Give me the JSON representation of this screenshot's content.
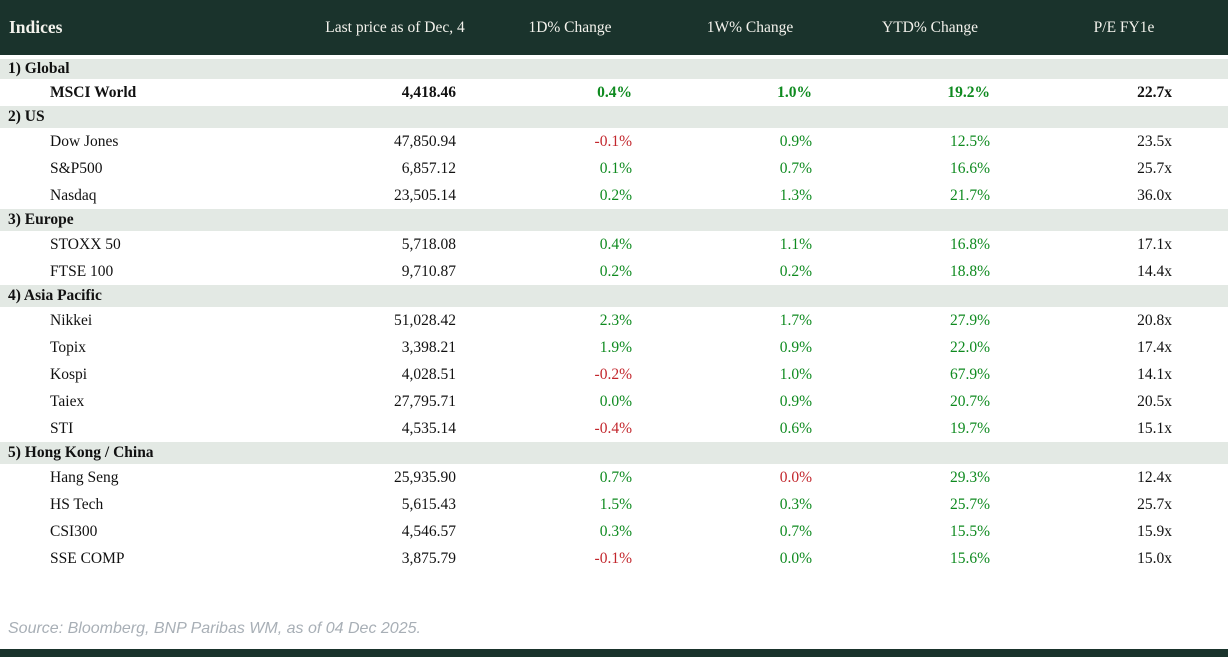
{
  "table": {
    "columns": [
      {
        "label": "Indices"
      },
      {
        "label": "Last price as of Dec, 4"
      },
      {
        "label": "1D% Change"
      },
      {
        "label": "1W% Change"
      },
      {
        "label": "YTD% Change"
      },
      {
        "label": "P/E FY1e"
      }
    ],
    "sections": [
      {
        "label": "1) Global",
        "rows": [
          {
            "name": "MSCI World",
            "emphasis": true,
            "last_price": "4,418.46",
            "chg_1d": {
              "text": "0.4%",
              "dir": "up"
            },
            "chg_1w": {
              "text": "1.0%",
              "dir": "up"
            },
            "chg_ytd": {
              "text": "19.2%",
              "dir": "up"
            },
            "pe_fy1e": "22.7x"
          }
        ]
      },
      {
        "label": "2) US",
        "rows": [
          {
            "name": "Dow Jones",
            "emphasis": false,
            "last_price": "47,850.94",
            "chg_1d": {
              "text": "-0.1%",
              "dir": "down"
            },
            "chg_1w": {
              "text": "0.9%",
              "dir": "up"
            },
            "chg_ytd": {
              "text": "12.5%",
              "dir": "up"
            },
            "pe_fy1e": "23.5x"
          },
          {
            "name": "S&P500",
            "emphasis": false,
            "last_price": "6,857.12",
            "chg_1d": {
              "text": "0.1%",
              "dir": "up"
            },
            "chg_1w": {
              "text": "0.7%",
              "dir": "up"
            },
            "chg_ytd": {
              "text": "16.6%",
              "dir": "up"
            },
            "pe_fy1e": "25.7x"
          },
          {
            "name": "Nasdaq",
            "emphasis": false,
            "last_price": "23,505.14",
            "chg_1d": {
              "text": "0.2%",
              "dir": "up"
            },
            "chg_1w": {
              "text": "1.3%",
              "dir": "up"
            },
            "chg_ytd": {
              "text": "21.7%",
              "dir": "up"
            },
            "pe_fy1e": "36.0x"
          }
        ]
      },
      {
        "label": "3) Europe",
        "rows": [
          {
            "name": "STOXX 50",
            "emphasis": false,
            "last_price": "5,718.08",
            "chg_1d": {
              "text": "0.4%",
              "dir": "up"
            },
            "chg_1w": {
              "text": "1.1%",
              "dir": "up"
            },
            "chg_ytd": {
              "text": "16.8%",
              "dir": "up"
            },
            "pe_fy1e": "17.1x"
          },
          {
            "name": "FTSE 100",
            "emphasis": false,
            "last_price": "9,710.87",
            "chg_1d": {
              "text": "0.2%",
              "dir": "up"
            },
            "chg_1w": {
              "text": "0.2%",
              "dir": "up"
            },
            "chg_ytd": {
              "text": "18.8%",
              "dir": "up"
            },
            "pe_fy1e": "14.4x"
          }
        ]
      },
      {
        "label": "4) Asia Pacific",
        "rows": [
          {
            "name": "Nikkei",
            "emphasis": false,
            "last_price": "51,028.42",
            "chg_1d": {
              "text": "2.3%",
              "dir": "up"
            },
            "chg_1w": {
              "text": "1.7%",
              "dir": "up"
            },
            "chg_ytd": {
              "text": "27.9%",
              "dir": "up"
            },
            "pe_fy1e": "20.8x"
          },
          {
            "name": "Topix",
            "emphasis": false,
            "last_price": "3,398.21",
            "chg_1d": {
              "text": "1.9%",
              "dir": "up"
            },
            "chg_1w": {
              "text": "0.9%",
              "dir": "up"
            },
            "chg_ytd": {
              "text": "22.0%",
              "dir": "up"
            },
            "pe_fy1e": "17.4x"
          },
          {
            "name": "Kospi",
            "emphasis": false,
            "last_price": "4,028.51",
            "chg_1d": {
              "text": "-0.2%",
              "dir": "down"
            },
            "chg_1w": {
              "text": "1.0%",
              "dir": "up"
            },
            "chg_ytd": {
              "text": "67.9%",
              "dir": "up"
            },
            "pe_fy1e": "14.1x"
          },
          {
            "name": "Taiex",
            "emphasis": false,
            "last_price": "27,795.71",
            "chg_1d": {
              "text": "0.0%",
              "dir": "up"
            },
            "chg_1w": {
              "text": "0.9%",
              "dir": "up"
            },
            "chg_ytd": {
              "text": "20.7%",
              "dir": "up"
            },
            "pe_fy1e": "20.5x"
          },
          {
            "name": "STI",
            "emphasis": false,
            "last_price": "4,535.14",
            "chg_1d": {
              "text": "-0.4%",
              "dir": "down"
            },
            "chg_1w": {
              "text": "0.6%",
              "dir": "up"
            },
            "chg_ytd": {
              "text": "19.7%",
              "dir": "up"
            },
            "pe_fy1e": "15.1x"
          }
        ]
      },
      {
        "label": "5) Hong Kong / China",
        "rows": [
          {
            "name": "Hang Seng",
            "emphasis": false,
            "last_price": "25,935.90",
            "chg_1d": {
              "text": "0.7%",
              "dir": "up"
            },
            "chg_1w": {
              "text": "0.0%",
              "dir": "down"
            },
            "chg_ytd": {
              "text": "29.3%",
              "dir": "up"
            },
            "pe_fy1e": "12.4x"
          },
          {
            "name": "HS Tech",
            "emphasis": false,
            "last_price": "5,615.43",
            "chg_1d": {
              "text": "1.5%",
              "dir": "up"
            },
            "chg_1w": {
              "text": "0.3%",
              "dir": "up"
            },
            "chg_ytd": {
              "text": "25.7%",
              "dir": "up"
            },
            "pe_fy1e": "25.7x"
          },
          {
            "name": "CSI300",
            "emphasis": false,
            "last_price": "4,546.57",
            "chg_1d": {
              "text": "0.3%",
              "dir": "up"
            },
            "chg_1w": {
              "text": "0.7%",
              "dir": "up"
            },
            "chg_ytd": {
              "text": "15.5%",
              "dir": "up"
            },
            "pe_fy1e": "15.9x"
          },
          {
            "name": "SSE COMP",
            "emphasis": false,
            "last_price": "3,875.79",
            "chg_1d": {
              "text": "-0.1%",
              "dir": "down"
            },
            "chg_1w": {
              "text": "0.0%",
              "dir": "up"
            },
            "chg_ytd": {
              "text": "15.6%",
              "dir": "up"
            },
            "pe_fy1e": "15.0x"
          }
        ]
      }
    ]
  },
  "footer": {
    "source": "Source: Bloomberg, BNP Paribas WM, as of 04 Dec 2025."
  },
  "colors": {
    "header_bg": "#1a332c",
    "section_bg": "#e3e9e4",
    "positive": "#0e8a1f",
    "negative": "#c2262c",
    "source_text": "#a8afb6"
  }
}
